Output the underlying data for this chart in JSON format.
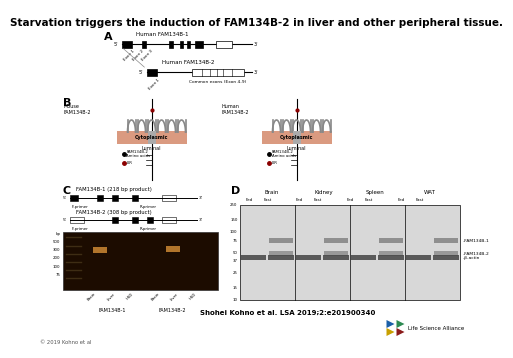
{
  "title": "Starvation triggers the induction of FAM134B-2 in liver and other peripheral tissue.",
  "title_fontsize": 7.5,
  "bg_color": "#ffffff",
  "citation": "Shohei Kohno et al. LSA 2019;2:e201900340",
  "copyright": "© 2019 Kohno et al",
  "lsa_text": "Life Science Alliance",
  "salmon_color": "#D4896A",
  "lir_color": "#8B0000",
  "lsa_colors": [
    "#1a5fa8",
    "#2d8a52",
    "#c8a000",
    "#8B1a1a"
  ]
}
